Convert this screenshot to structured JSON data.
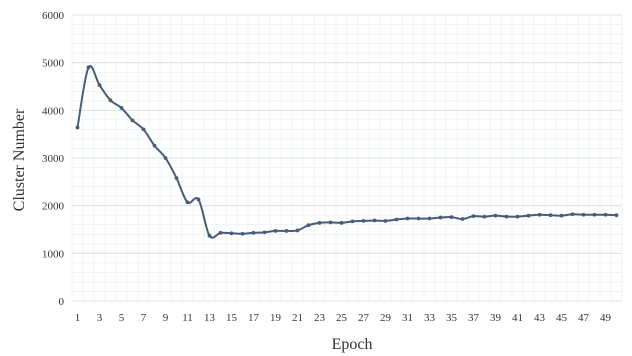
{
  "chart_data": {
    "type": "line",
    "xlabel": "Epoch",
    "ylabel": "Cluster Number",
    "ylim": [
      0,
      6000
    ],
    "yticks": [
      0,
      1000,
      2000,
      3000,
      4000,
      5000,
      6000
    ],
    "xlim": [
      1,
      50
    ],
    "xticks": [
      1,
      3,
      5,
      7,
      9,
      11,
      13,
      15,
      17,
      19,
      21,
      23,
      25,
      27,
      29,
      31,
      33,
      35,
      37,
      39,
      41,
      43,
      45,
      47,
      49
    ],
    "grid": true,
    "legend": "none",
    "series": [
      {
        "color": "#4a5d78",
        "x": [
          1,
          2,
          3,
          4,
          5,
          6,
          7,
          8,
          9,
          10,
          11,
          12,
          13,
          14,
          15,
          16,
          17,
          18,
          19,
          20,
          21,
          22,
          23,
          24,
          25,
          26,
          27,
          28,
          29,
          30,
          31,
          32,
          33,
          34,
          35,
          36,
          37,
          38,
          39,
          40,
          41,
          42,
          43,
          44,
          45,
          46,
          47,
          48,
          49,
          50
        ],
        "values": [
          3640,
          4900,
          4530,
          4210,
          4050,
          3790,
          3600,
          3260,
          3000,
          2580,
          2070,
          2130,
          1370,
          1430,
          1420,
          1410,
          1430,
          1440,
          1470,
          1470,
          1480,
          1590,
          1640,
          1650,
          1640,
          1670,
          1680,
          1690,
          1680,
          1710,
          1730,
          1730,
          1730,
          1750,
          1760,
          1720,
          1780,
          1770,
          1790,
          1770,
          1770,
          1790,
          1810,
          1800,
          1790,
          1820,
          1810,
          1810,
          1810,
          1800
        ]
      }
    ]
  }
}
